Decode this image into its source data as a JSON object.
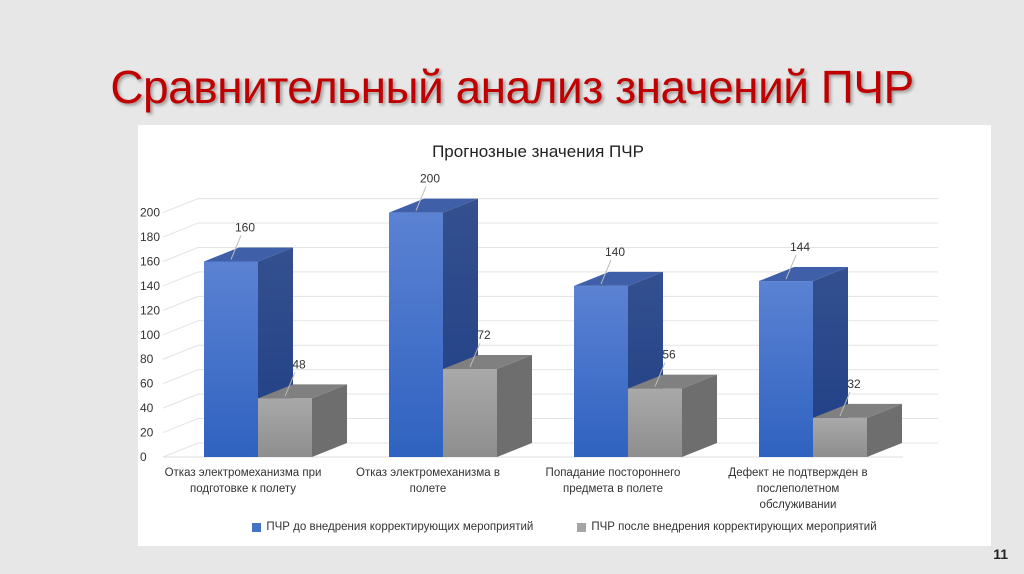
{
  "slide": {
    "title": "Сравнительный анализ значений ПЧР",
    "page_number": "11"
  },
  "colors": {
    "title": "#c00000",
    "series_before": "#4472c4",
    "series_after": "#a5a5a5"
  },
  "chart_data": {
    "type": "bar",
    "title": "Прогнозные значения ПЧР",
    "xlabel": "",
    "ylabel": "",
    "ylim": [
      0,
      200
    ],
    "yticks": [
      0,
      20,
      40,
      60,
      80,
      100,
      120,
      140,
      160,
      180,
      200
    ],
    "grid": true,
    "legend_position": "bottom",
    "categories": [
      "Отказ электромеханизма при подготовке к полету",
      "Отказ электромеханизма в полете",
      "Попадание постороннего предмета в полете",
      "Дефект не подтвержден в послеполетном обслуживании"
    ],
    "series": [
      {
        "name": "ПЧР до внедрения корректирующих мероприятий",
        "values": [
          160,
          200,
          140,
          144
        ]
      },
      {
        "name": "ПЧР после внедрения корректирующих мероприятий",
        "values": [
          48,
          72,
          56,
          32
        ]
      }
    ]
  },
  "chart_labels": {
    "categories_lines": [
      [
        "Отказ электромеханизма при",
        "подготовке к полету"
      ],
      [
        "Отказ электромеханизма в",
        "полете"
      ],
      [
        "Попадание постороннего",
        "предмета в полете"
      ],
      [
        "Дефект не подтвержден в",
        "послеполетном",
        "обслуживании"
      ]
    ],
    "legend": [
      "ПЧР до внедрения корректирующих мероприятий",
      "ПЧР после внедрения корректирующих мероприятий"
    ]
  }
}
